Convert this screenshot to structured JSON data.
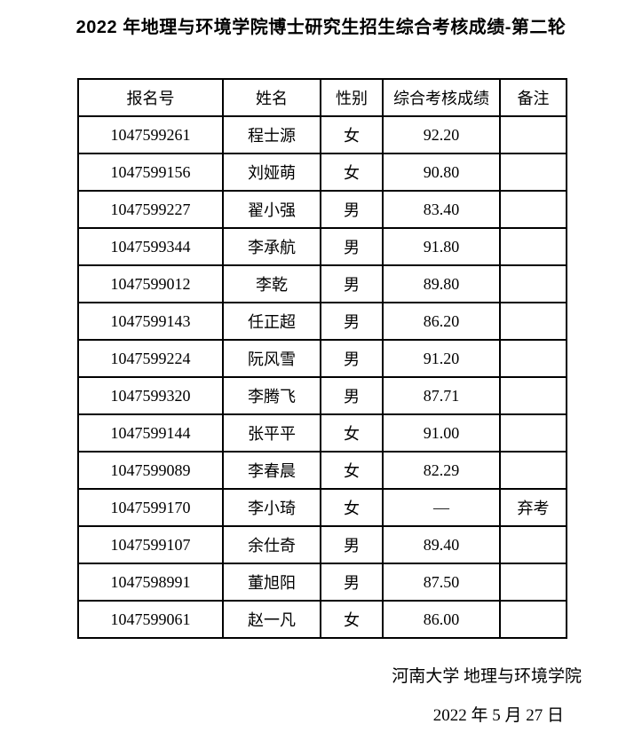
{
  "page": {
    "title": "2022 年地理与环境学院博士研究生招生综合考核成绩-第二轮"
  },
  "table": {
    "headers": [
      "报名号",
      "姓名",
      "性别",
      "综合考核成绩",
      "备注"
    ],
    "rows": [
      [
        "1047599261",
        "程士源",
        "女",
        "92.20",
        ""
      ],
      [
        "1047599156",
        "刘娅萌",
        "女",
        "90.80",
        ""
      ],
      [
        "1047599227",
        "翟小强",
        "男",
        "83.40",
        ""
      ],
      [
        "1047599344",
        "李承航",
        "男",
        "91.80",
        ""
      ],
      [
        "1047599012",
        "李乾",
        "男",
        "89.80",
        ""
      ],
      [
        "1047599143",
        "任正超",
        "男",
        "86.20",
        ""
      ],
      [
        "1047599224",
        "阮风雪",
        "男",
        "91.20",
        ""
      ],
      [
        "1047599320",
        "李腾飞",
        "男",
        "87.71",
        ""
      ],
      [
        "1047599144",
        "张平平",
        "女",
        "91.00",
        ""
      ],
      [
        "1047599089",
        "李春晨",
        "女",
        "82.29",
        ""
      ],
      [
        "1047599170",
        "李小琦",
        "女",
        "—",
        "弃考"
      ],
      [
        "1047599107",
        "余仕奇",
        "男",
        "89.40",
        ""
      ],
      [
        "1047598991",
        "董旭阳",
        "男",
        "87.50",
        ""
      ],
      [
        "1047599061",
        "赵一凡",
        "女",
        "86.00",
        ""
      ]
    ]
  },
  "footer": {
    "organization": "河南大学 地理与环境学院",
    "date": "2022 年 5 月 27 日"
  },
  "colors": {
    "text": "#000000",
    "border": "#000000",
    "background": "#ffffff"
  }
}
